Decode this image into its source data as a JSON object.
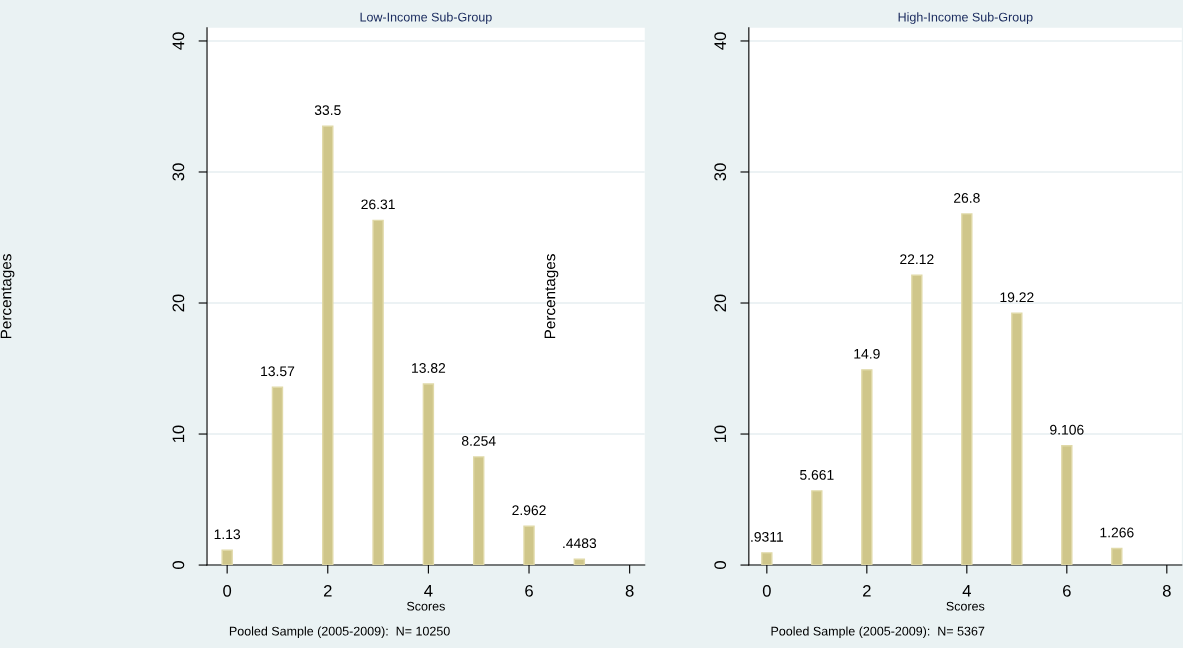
{
  "chart_data": [
    {
      "type": "bar",
      "title": "Low-Income Sub-Group",
      "xlabel": "Scores",
      "ylabel": "Percentages",
      "x": [
        0,
        1,
        2,
        3,
        4,
        5,
        6,
        7
      ],
      "values": [
        1.13,
        13.57,
        33.5,
        26.31,
        13.82,
        8.254,
        2.962,
        0.4483
      ],
      "value_labels": [
        "1.13",
        "13.57",
        "33.5",
        "26.31",
        "13.82",
        "8.254",
        "2.962",
        ".4483"
      ],
      "color": "#cfc68a",
      "xlim": [
        -0.4,
        8.3
      ],
      "xticks": [
        0,
        2,
        4,
        6,
        8
      ],
      "ylim": [
        0,
        41
      ],
      "yticks": [
        0,
        10,
        20,
        30,
        40
      ],
      "grid": "y",
      "annotations": [
        "Pooled Sample (2005-2009):  N= 10250"
      ]
    },
    {
      "type": "bar",
      "title": "High-Income Sub-Group",
      "xlabel": "Scores",
      "ylabel": "Percentages",
      "x": [
        0,
        1,
        2,
        3,
        4,
        5,
        6,
        7
      ],
      "values": [
        0.9311,
        5.661,
        14.9,
        22.12,
        26.8,
        19.22,
        9.106,
        1.266
      ],
      "value_labels": [
        ".9311",
        "5.661",
        "14.9",
        "22.12",
        "26.8",
        "19.22",
        "9.106",
        "1.266"
      ],
      "color": "#cfc68a",
      "xlim": [
        -0.36,
        8.3
      ],
      "xticks": [
        0,
        2,
        4,
        6,
        8
      ],
      "ylim": [
        0,
        41
      ],
      "yticks": [
        0,
        10,
        20,
        30,
        40
      ],
      "grid": "y",
      "annotations": [
        "Pooled Sample (2005-2009):  N= 5367"
      ]
    }
  ]
}
